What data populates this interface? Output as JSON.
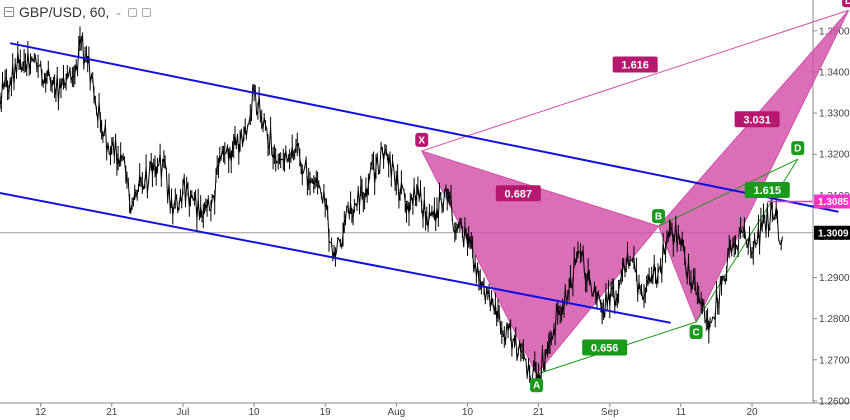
{
  "header": {
    "symbol": "GBP/USD, 60,"
  },
  "colors": {
    "bullish_harmonic": "#d24fa8",
    "bearish_harmonic": "#1a9a1a",
    "channel": "#1010e0",
    "price": "#000000",
    "current_price_label": "#000000",
    "target_label": "#ff33cc"
  },
  "chart_data": {
    "type": "line",
    "title": "",
    "y_axis": {
      "ticks": [
        1.35,
        1.34,
        1.33,
        1.32,
        1.31,
        1.3,
        1.29,
        1.28,
        1.27,
        1.26
      ],
      "tick_labels": [
        "1.3500",
        "1.3400",
        "1.3300",
        "1.3200",
        "1.3100",
        "1.3000",
        "1.2900",
        "1.2800",
        "1.2700",
        "1.2600"
      ],
      "range": [
        1.2595,
        1.3575
      ]
    },
    "x_axis": {
      "tick_labels": [
        "12",
        "21",
        "Jul",
        "10",
        "19",
        "Aug",
        "10",
        "21",
        "Sep",
        "11",
        "20"
      ],
      "tick_positions": [
        0,
        7,
        14,
        21,
        28,
        35,
        42,
        49,
        56,
        63,
        70
      ],
      "range": [
        -4,
        76
      ]
    },
    "current_price": {
      "value": 1.3009,
      "label": "1.3009"
    },
    "target_price": {
      "value": 1.3085,
      "label": "1.3085"
    },
    "price_anchors": [
      [
        -4,
        1.333
      ],
      [
        -3,
        1.338
      ],
      [
        -2,
        1.343
      ],
      [
        -1,
        1.342
      ],
      [
        0,
        1.342
      ],
      [
        1,
        1.337
      ],
      [
        2,
        1.336
      ],
      [
        3,
        1.338
      ],
      [
        4,
        1.347
      ],
      [
        5,
        1.339
      ],
      [
        6,
        1.326
      ],
      [
        7,
        1.322
      ],
      [
        8,
        1.319
      ],
      [
        9,
        1.308
      ],
      [
        10,
        1.313
      ],
      [
        11,
        1.315
      ],
      [
        12,
        1.318
      ],
      [
        13,
        1.305
      ],
      [
        14,
        1.312
      ],
      [
        15,
        1.309
      ],
      [
        16,
        1.305
      ],
      [
        17,
        1.31
      ],
      [
        18,
        1.32
      ],
      [
        19,
        1.322
      ],
      [
        20,
        1.325
      ],
      [
        21,
        1.335
      ],
      [
        22,
        1.329
      ],
      [
        23,
        1.32
      ],
      [
        24,
        1.318
      ],
      [
        25,
        1.32
      ],
      [
        26,
        1.317
      ],
      [
        27,
        1.313
      ],
      [
        28,
        1.307
      ],
      [
        29,
        1.295
      ],
      [
        30,
        1.304
      ],
      [
        31,
        1.308
      ],
      [
        32,
        1.312
      ],
      [
        33,
        1.317
      ],
      [
        34,
        1.321
      ],
      [
        35,
        1.313
      ],
      [
        36,
        1.306
      ],
      [
        37,
        1.31
      ],
      [
        38,
        1.305
      ],
      [
        39,
        1.307
      ],
      [
        40,
        1.309
      ],
      [
        41,
        1.302
      ],
      [
        42,
        1.298
      ],
      [
        43,
        1.293
      ],
      [
        44,
        1.286
      ],
      [
        45,
        1.282
      ],
      [
        46,
        1.277
      ],
      [
        47,
        1.272
      ],
      [
        48,
        1.269
      ],
      [
        49,
        1.267
      ],
      [
        50,
        1.274
      ],
      [
        51,
        1.282
      ],
      [
        52,
        1.287
      ],
      [
        53,
        1.296
      ],
      [
        54,
        1.29
      ],
      [
        55,
        1.285
      ],
      [
        56,
        1.283
      ],
      [
        57,
        1.289
      ],
      [
        58,
        1.294
      ],
      [
        59,
        1.287
      ],
      [
        60,
        1.289
      ],
      [
        61,
        1.293
      ],
      [
        62,
        1.302
      ],
      [
        63,
        1.298
      ],
      [
        64,
        1.289
      ],
      [
        65,
        1.284
      ],
      [
        66,
        1.279
      ],
      [
        67,
        1.288
      ],
      [
        68,
        1.296
      ],
      [
        69,
        1.301
      ],
      [
        70,
        1.296
      ],
      [
        71,
        1.302
      ],
      [
        72,
        1.306
      ],
      [
        73,
        1.3
      ]
    ],
    "channel_lines": [
      {
        "name": "upper",
        "from": [
          -3,
          1.347
        ],
        "to": [
          78.5,
          1.306
        ]
      },
      {
        "name": "lower",
        "from": [
          -7,
          1.312
        ],
        "to": [
          62,
          1.279
        ]
      }
    ],
    "points": {
      "X": {
        "x": 37.5,
        "y": 1.3208
      },
      "A": {
        "x": 48.8,
        "y": 1.2665
      },
      "B": {
        "x": 60.8,
        "y": 1.3025
      },
      "C": {
        "x": 64.5,
        "y": 1.2792
      },
      "D_bull": {
        "x": 79.5,
        "y": 1.355
      },
      "D_bear": {
        "x": 74.5,
        "y": 1.3188
      }
    },
    "bullish_pattern": {
      "name": "",
      "point_labels": [
        "X",
        "A",
        "B",
        "C",
        "D"
      ],
      "ratios": [
        {
          "label": "0.687",
          "at": [
            47.0,
            1.3105
          ]
        },
        {
          "label": "1.616",
          "at": [
            58.5,
            1.3418
          ]
        },
        {
          "label": "3.031",
          "at": [
            70.5,
            1.3285
          ]
        }
      ]
    },
    "bearish_pattern": {
      "name": "",
      "point_labels": [
        "A",
        "B",
        "C",
        "D"
      ],
      "ratios": [
        {
          "label": "0.656",
          "at": [
            55.5,
            1.273
          ]
        },
        {
          "label": "1.615",
          "at": [
            71.5,
            1.3113
          ]
        }
      ]
    }
  }
}
